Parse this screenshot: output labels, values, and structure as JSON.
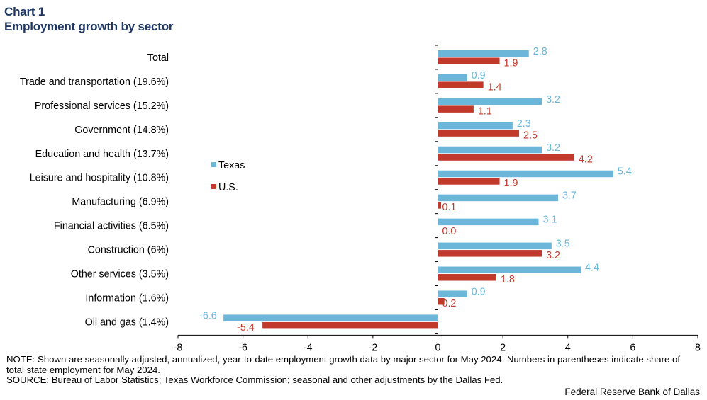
{
  "header": {
    "chart_number": "Chart 1",
    "title": "Employment growth by sector"
  },
  "chart_data": {
    "type": "bar",
    "orientation": "horizontal",
    "title": "Employment growth by sector",
    "categories": [
      "Total",
      "Trade and transportation (19.6%)",
      "Professional services (15.2%)",
      "Government (14.8%)",
      "Education and health (13.7%)",
      "Leisure and hospitality (10.8%)",
      "Manufacturing (6.9%)",
      "Financial activities (6.5%)",
      "Construction (6%)",
      "Other services (3.5%)",
      "Information (1.6%)",
      "Oil and gas (1.4%)"
    ],
    "series": [
      {
        "name": "Texas",
        "color": "#6bb6d9",
        "values": [
          2.8,
          0.9,
          3.2,
          2.3,
          3.2,
          5.4,
          3.7,
          3.1,
          3.5,
          4.4,
          0.9,
          -6.6
        ],
        "labels": [
          "2.8",
          "0.9",
          "3.2",
          "2.3",
          "3.2",
          "5.4",
          "3.7",
          "3.1",
          "3.5",
          "4.4",
          "0.9",
          "-6.6"
        ]
      },
      {
        "name": "U.S.",
        "color": "#c0392b",
        "values": [
          1.9,
          1.4,
          1.1,
          2.5,
          4.2,
          1.9,
          0.1,
          0.0,
          3.2,
          1.8,
          0.2,
          -5.4
        ],
        "labels": [
          "1.9",
          "1.4",
          "1.1",
          "2.5",
          "4.2",
          "1.9",
          "0.1",
          "0.0",
          "3.2",
          "1.8",
          "0.2",
          "-5.4"
        ]
      }
    ],
    "xlim": [
      -8,
      8
    ],
    "xticks": [
      "-8",
      "-6",
      "-4",
      "-2",
      "0",
      "2",
      "4",
      "6",
      "8"
    ],
    "xlabel": "",
    "ylabel": "",
    "grid": false,
    "legend": {
      "placement": "middle-left",
      "entries": [
        "Texas",
        "U.S."
      ]
    }
  },
  "footer": {
    "note": "NOTE: Shown are seasonally adjusted, annualized, year-to-date employment growth data by major sector for May 2024. Numbers in parentheses indicate share of total state employment for May 2024.",
    "source": "SOURCE: Bureau of Labor Statistics; Texas Workforce Commission; seasonal and other adjustments by the Dallas Fed.",
    "credit": "Federal Reserve Bank of Dallas"
  }
}
